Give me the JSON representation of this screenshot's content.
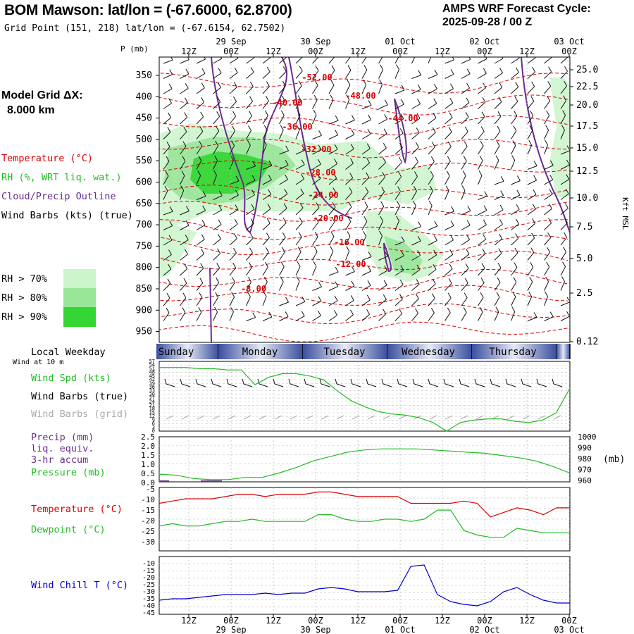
{
  "header": {
    "title": "BOM Mawson:  lat/lon = (-67.6000, 62.8700)",
    "grid_point": "Grid Point (151, 218) lat/lon = (-67.6154, 62.7502)",
    "cycle_line1": "AMPS WRF Forecast Cycle:",
    "cycle_line2": "2025-09-28 / 00  Z"
  },
  "left_labels": {
    "model_grid": "Model Grid ΔX:",
    "model_grid_value": "8.000 km",
    "temperature": "Temperature (°C)",
    "rh": "RH (%, WRT liq. wat.)",
    "cloud": "Cloud/Precip Outline",
    "wind_barbs": "Wind Barbs (kts) (true)",
    "rh70": "RH > 70%",
    "rh80": "RH > 80%",
    "rh90": "RH > 90%",
    "local_weekday": "Local Weekday",
    "wind_10m": "Wind at 10 m",
    "wind_spd": "Wind Spd (kts)",
    "wind_barbs_true": "Wind Barbs (true)",
    "wind_barbs_grid": "Wind Barbs (grid)",
    "precip": "Precip (mm)",
    "liq_equiv": "liq. equiv.",
    "accum": "3-hr accum",
    "pressure": "Pressure (mb)",
    "temp2": "Temperature (°C)",
    "dewpoint": "Dewpoint (°C)",
    "windchill": "Wind Chill T (°C)",
    "p_mb": "P (mb)",
    "kft": "Kft MSL",
    "mb_unit": "(mb)"
  },
  "colors": {
    "temp": "#dd0000",
    "rh70": "#ccf5cc",
    "rh80": "#99e699",
    "rh90": "#33d633",
    "cloud": "#6a2c8e",
    "green": "#22bb22",
    "windchill": "#0000cc",
    "weekday": "#3b4f9e"
  },
  "chart_data": {
    "time_axis": {
      "top_ticks": [
        "12Z",
        "00Z",
        "12Z",
        "00Z",
        "12Z",
        "00Z",
        "12Z",
        "00Z",
        "12Z",
        "00Z"
      ],
      "dates": [
        "29 Sep",
        "30 Sep",
        "01 Oct",
        "02 Oct",
        "03 Oct"
      ],
      "weekdays": [
        "Sunday",
        "Monday",
        "Tuesday",
        "Wednesday",
        "Thursday"
      ]
    },
    "pressure_levels": [
      "350",
      "400",
      "450",
      "500",
      "550",
      "600",
      "650",
      "700",
      "750",
      "800",
      "850",
      "900",
      "950"
    ],
    "height_kft": [
      "25.0",
      "22.5",
      "20.0",
      "17.5",
      "15.0",
      "12.5",
      "10.0",
      "7.5",
      "5.0",
      "2.5",
      "0.12"
    ],
    "temperature_labels": [
      "-52.00",
      "-48.00",
      "-40.00",
      "-44.00",
      "-36.00",
      "-32.00",
      "-28.00",
      "-24.00",
      "-20.00",
      "-16.00",
      "-12.00",
      "-8.00"
    ],
    "wind_speed": {
      "type": "line",
      "y_ticks": [
        "57",
        "54",
        "51",
        "48",
        "45",
        "42",
        "39",
        "36",
        "33",
        "30",
        "27",
        "24",
        "21",
        "18",
        "15",
        "12",
        "9",
        "6",
        "3",
        "0"
      ],
      "values": [
        52,
        52,
        52,
        51,
        51,
        50,
        50,
        38,
        44,
        47,
        47,
        45,
        42,
        33,
        25,
        20,
        16,
        14,
        13,
        11,
        7,
        0,
        7,
        9,
        10,
        10,
        8,
        7,
        9,
        15,
        35
      ]
    },
    "precip_pressure": {
      "type": "line",
      "precip_ticks": [
        "2.5",
        "2.0",
        "1.5",
        "1.0",
        "0.5",
        "0.0"
      ],
      "pressure_ticks": [
        "1000",
        "990",
        "980",
        "970",
        "960"
      ],
      "pressure_mb": [
        967,
        966,
        963,
        962,
        962,
        964,
        964,
        968,
        973,
        979,
        983,
        987,
        989,
        990,
        990,
        990,
        989,
        988,
        987,
        986,
        984,
        982,
        979,
        974,
        968
      ]
    },
    "temp_dew": {
      "type": "line",
      "y_ticks": [
        "-5",
        "-10",
        "-15",
        "-20",
        "-25",
        "-30"
      ],
      "temperature": [
        -10,
        -9,
        -8,
        -8,
        -8,
        -7,
        -6,
        -6,
        -7,
        -6,
        -6,
        -6,
        -5,
        -5,
        -6,
        -7,
        -7,
        -7,
        -7,
        -10,
        -10,
        -10,
        -10,
        -9,
        -10,
        -16,
        -14,
        -12,
        -13,
        -15,
        -12,
        -12
      ],
      "dewpoint": [
        -20,
        -19,
        -20,
        -20,
        -19,
        -18,
        -18,
        -17,
        -18,
        -18,
        -18,
        -18,
        -15,
        -15,
        -17,
        -18,
        -18,
        -17,
        -17,
        -18,
        -17,
        -13,
        -13,
        -22,
        -24,
        -25,
        -25,
        -21,
        -22,
        -23,
        -23,
        -23
      ]
    },
    "wind_chill": {
      "type": "line",
      "y_ticks": [
        "-10",
        "-15",
        "-20",
        "-25",
        "-30",
        "-35",
        "-40",
        "-45"
      ],
      "values": [
        -36,
        -35,
        -35,
        -34,
        -33,
        -32,
        -32,
        -32,
        -31,
        -32,
        -31,
        -31,
        -28,
        -27,
        -28,
        -30,
        -30,
        -30,
        -29,
        -12,
        -11,
        -32,
        -37,
        -39,
        -40,
        -37,
        -30,
        -27,
        -32,
        -36,
        -38,
        -38
      ]
    }
  }
}
